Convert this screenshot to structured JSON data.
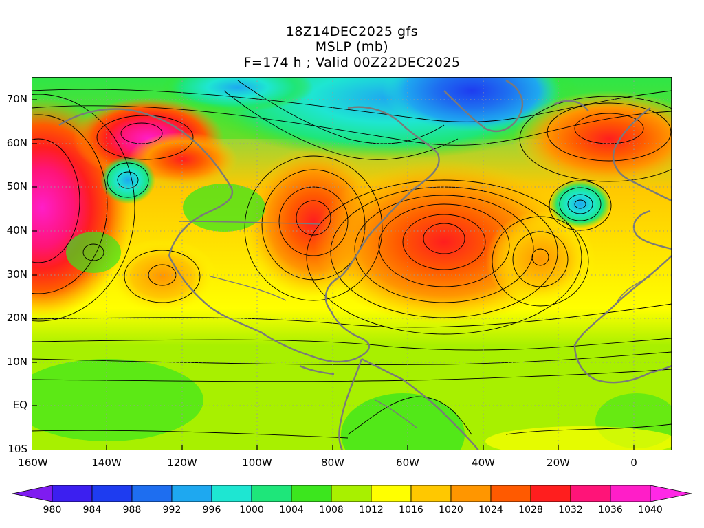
{
  "header": {
    "line1": "18Z14DEC2025 gfs",
    "line2": "MSLP (mb)",
    "line3": "F=174 h ; Valid 00Z22DEC2025"
  },
  "axes": {
    "lat_labels": [
      "70N",
      "60N",
      "50N",
      "40N",
      "30N",
      "20N",
      "10N",
      "EQ",
      "10S"
    ],
    "lon_labels": [
      "160W",
      "140W",
      "120W",
      "100W",
      "80W",
      "60W",
      "40W",
      "20W",
      "0"
    ]
  },
  "colorbar": {
    "labels": [
      "980",
      "984",
      "988",
      "992",
      "996",
      "1000",
      "1004",
      "1008",
      "1012",
      "1016",
      "1020",
      "1024",
      "1028",
      "1032",
      "1036",
      "1040"
    ],
    "colors": [
      "#7f1cf0",
      "#3c1ff0",
      "#1e3cf0",
      "#1e6ef0",
      "#1ea8f0",
      "#1ee6d2",
      "#1ee67a",
      "#3ce61e",
      "#a8f000",
      "#ffff00",
      "#ffc800",
      "#ff9600",
      "#ff5a00",
      "#ff1e1e",
      "#ff1478",
      "#ff1ec8",
      "#ff28e6"
    ]
  },
  "map": {
    "centers": [
      {
        "lon": -158,
        "lat": 47,
        "value": 1040
      },
      {
        "lon": -131,
        "lat": 62,
        "value": 1040
      },
      {
        "lon": -119,
        "lat": 58,
        "value": 1032
      },
      {
        "lon": -90,
        "lat": 43,
        "value": 1032
      },
      {
        "lon": -50,
        "lat": 38,
        "value": 1034
      },
      {
        "lon": -25,
        "lat": 34,
        "value": 1024
      },
      {
        "lon": -127,
        "lat": 33,
        "value": 1020
      },
      {
        "lon": -5,
        "lat": 65,
        "value": 1026
      },
      {
        "lon": -13,
        "lat": 46,
        "value": 998
      },
      {
        "lon": -55,
        "lat": 73,
        "value": 988
      },
      {
        "lon": -75,
        "lat": 66,
        "value": 998
      },
      {
        "lon": -130,
        "lat": 52,
        "value": 1002
      },
      {
        "lon": -150,
        "lat": 34,
        "value": 1010
      }
    ]
  }
}
